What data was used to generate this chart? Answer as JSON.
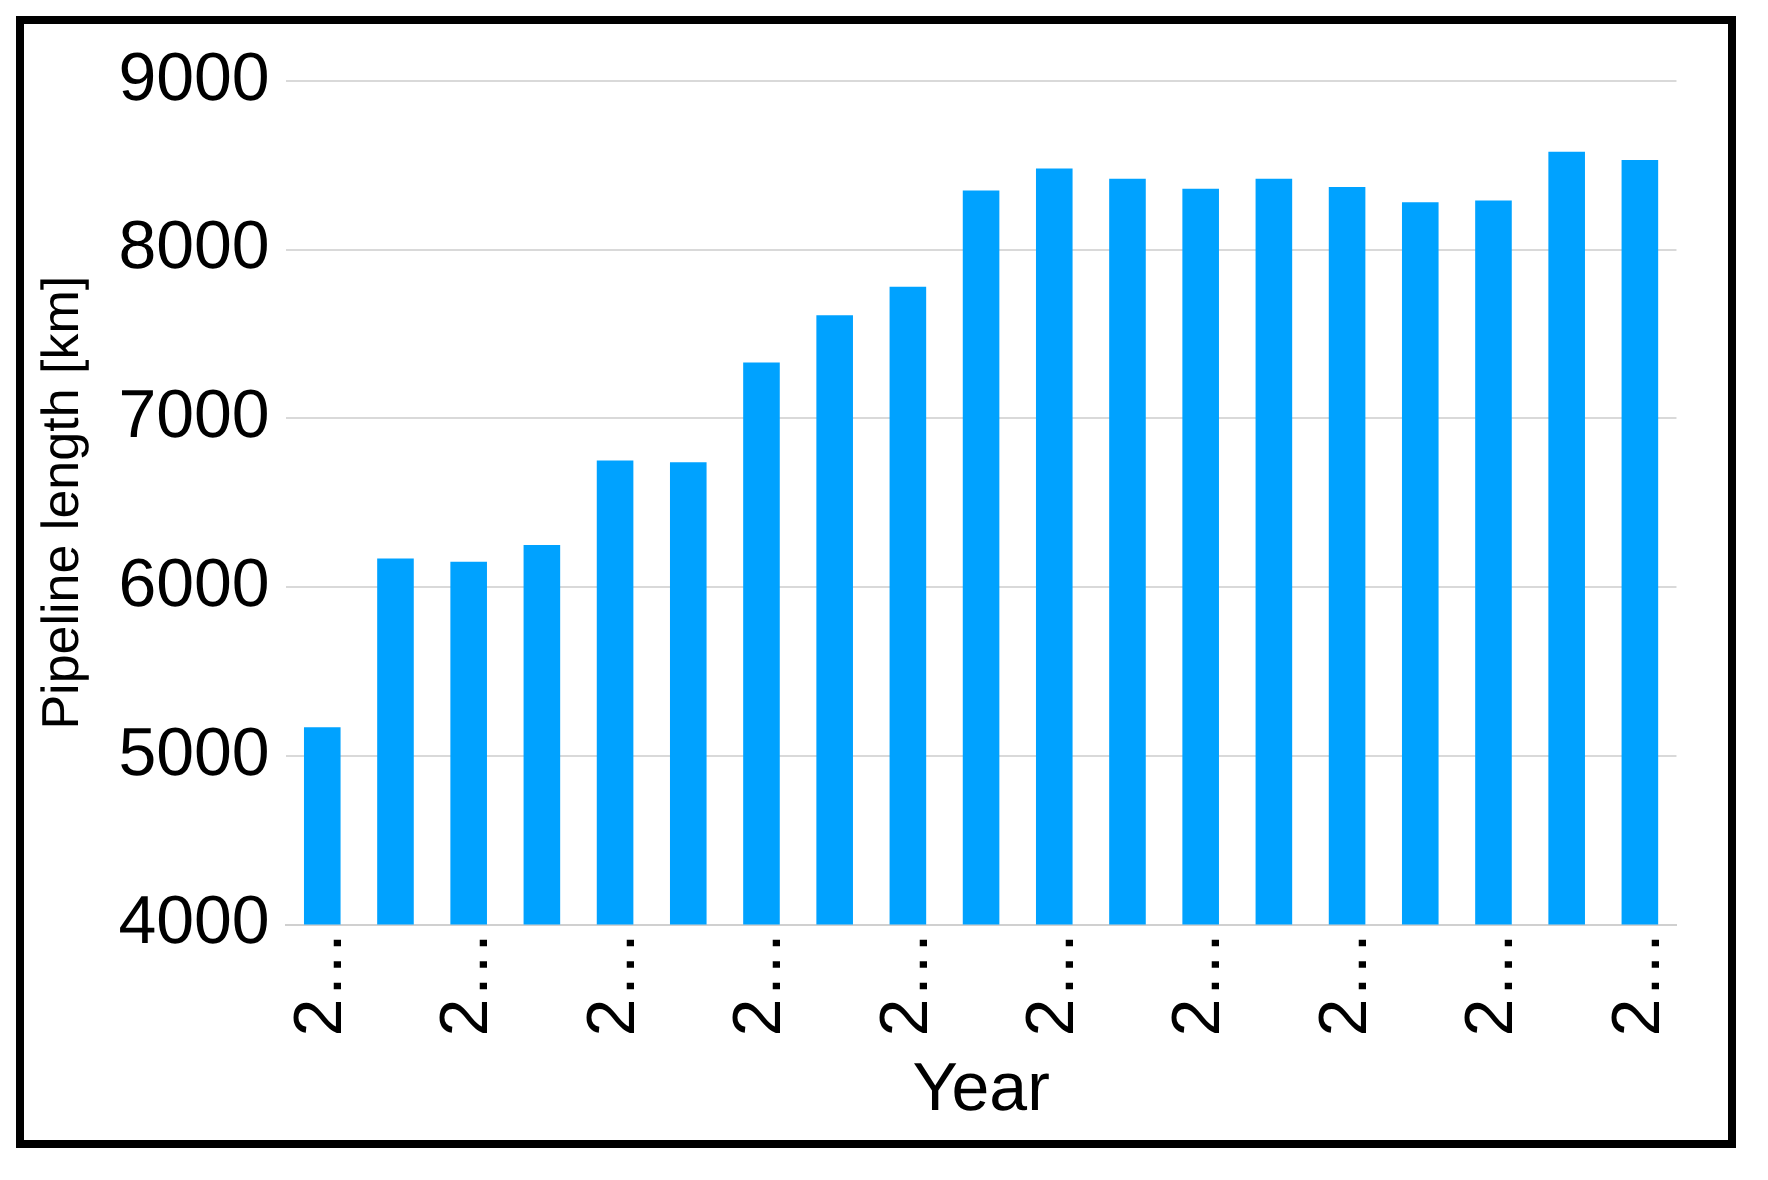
{
  "chart_data": {
    "type": "bar",
    "xlabel": "Year",
    "ylabel": "Pipeline length [km]",
    "categories": [
      "2…",
      null,
      "2…",
      null,
      "2…",
      null,
      "2…",
      null,
      "2…",
      null,
      "2…",
      null,
      "2…",
      null,
      "2…",
      null,
      "2…",
      null,
      "2…"
    ],
    "values": [
      5170,
      6170,
      6150,
      6250,
      6750,
      6740,
      7330,
      7610,
      7780,
      8350,
      8480,
      8420,
      8360,
      8420,
      8370,
      8280,
      8290,
      8580,
      8530
    ],
    "color": "#00a2ff",
    "ylim": [
      4000,
      9000
    ],
    "yticks": [
      4000,
      5000,
      6000,
      7000,
      8000,
      9000
    ],
    "grid": "y"
  }
}
